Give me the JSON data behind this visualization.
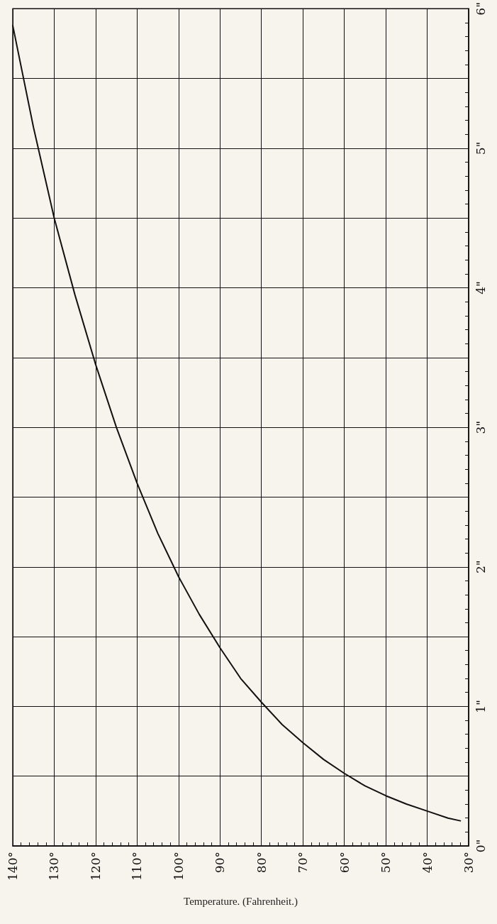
{
  "chart_data": {
    "type": "line",
    "xlabel": "Temperature. (Fahrenheit.)",
    "x": [
      140,
      135,
      130,
      125,
      120,
      115,
      110,
      105,
      100,
      95,
      90,
      85,
      80,
      75,
      70,
      65,
      60,
      55,
      50,
      45,
      40,
      35,
      32
    ],
    "series": [
      {
        "color": "#111111",
        "values": [
          5.88,
          5.15,
          4.5,
          3.95,
          3.45,
          3.0,
          2.6,
          2.24,
          1.93,
          1.66,
          1.42,
          1.2,
          1.03,
          0.87,
          0.74,
          0.62,
          0.52,
          0.43,
          0.36,
          0.3,
          0.25,
          0.2,
          0.18
        ]
      }
    ],
    "xlim": [
      140,
      30
    ],
    "xticks": [
      {
        "value": 140,
        "label": "140°"
      },
      {
        "value": 130,
        "label": "130°"
      },
      {
        "value": 120,
        "label": "120°"
      },
      {
        "value": 110,
        "label": "110°"
      },
      {
        "value": 100,
        "label": "100°"
      },
      {
        "value": 90,
        "label": "90°"
      },
      {
        "value": 80,
        "label": "80°"
      },
      {
        "value": 70,
        "label": "70°"
      },
      {
        "value": 60,
        "label": "60°"
      },
      {
        "value": 50,
        "label": "50°"
      },
      {
        "value": 40,
        "label": "40°"
      },
      {
        "value": 30,
        "label": "30°"
      }
    ],
    "ylim": [
      0,
      6
    ],
    "yticks": [
      {
        "value": 0,
        "label": "0\""
      },
      {
        "value": 0.5,
        "label": null
      },
      {
        "value": 1,
        "label": "1\""
      },
      {
        "value": 1.5,
        "label": null
      },
      {
        "value": 2,
        "label": "2\""
      },
      {
        "value": 2.5,
        "label": null
      },
      {
        "value": 3,
        "label": "3\""
      },
      {
        "value": 3.5,
        "label": null
      },
      {
        "value": 4,
        "label": "4\""
      },
      {
        "value": 4.5,
        "label": null
      },
      {
        "value": 5,
        "label": "5\""
      },
      {
        "value": 5.5,
        "label": null
      },
      {
        "value": 6,
        "label": "6\""
      }
    ],
    "grid": true,
    "marker": "none",
    "line_style": "solid"
  }
}
